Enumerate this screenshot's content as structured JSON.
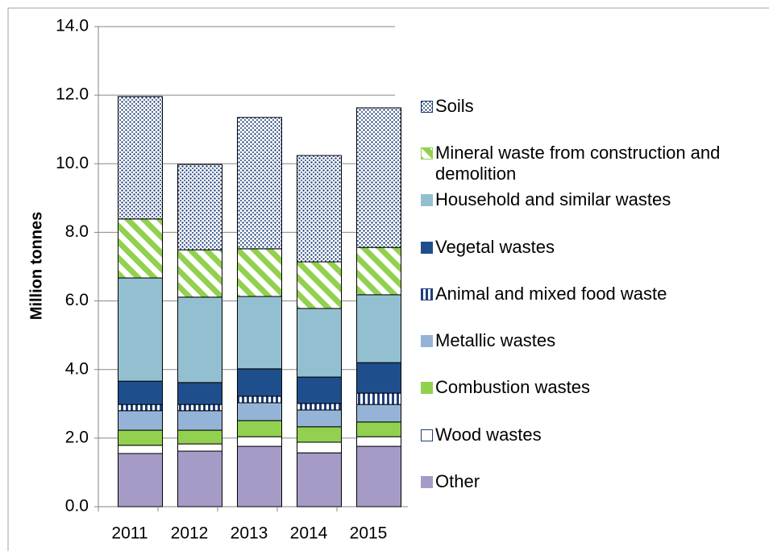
{
  "chart_data": {
    "type": "stacked_bar",
    "y_label": "Million tonnes",
    "categories": [
      "2011",
      "2012",
      "2013",
      "2014",
      "2015"
    ],
    "series": [
      {
        "name": "Other",
        "color": "#a69bc6",
        "values": [
          1.55,
          1.62,
          1.76,
          1.57,
          1.76
        ]
      },
      {
        "name": "Wood wastes",
        "color": "#ffffff",
        "values": [
          0.24,
          0.21,
          0.28,
          0.31,
          0.28
        ]
      },
      {
        "name": "Combustion wastes",
        "color": "#92d050",
        "values": [
          0.44,
          0.4,
          0.47,
          0.45,
          0.43
        ]
      },
      {
        "name": "Metallic wastes",
        "color": "#95b3d7",
        "values": [
          0.57,
          0.57,
          0.52,
          0.49,
          0.51
        ]
      },
      {
        "name": "Animal and mixed food waste",
        "color": "#1f3f7a",
        "pattern": "vertical",
        "values": [
          0.18,
          0.18,
          0.19,
          0.19,
          0.33
        ]
      },
      {
        "name": "Vegetal wastes",
        "color": "#1f4e8c",
        "values": [
          0.68,
          0.64,
          0.8,
          0.77,
          0.89
        ]
      },
      {
        "name": "Household and similar wastes",
        "color": "#93c0d0",
        "values": [
          3.01,
          2.49,
          2.11,
          2.0,
          1.98
        ]
      },
      {
        "name": "Mineral waste from construction and demolition",
        "color": "#92d050",
        "pattern": "diagonal",
        "values": [
          1.72,
          1.38,
          1.39,
          1.36,
          1.38
        ]
      },
      {
        "name": "Soils",
        "color": "#1f3f7a",
        "pattern": "dots",
        "values": [
          3.57,
          2.49,
          3.83,
          3.1,
          4.07
        ]
      }
    ],
    "ylim": [
      0,
      14
    ],
    "yticks": [
      {
        "value": 0,
        "label": "0.0"
      },
      {
        "value": 2,
        "label": "2.0"
      },
      {
        "value": 4,
        "label": "4.0"
      },
      {
        "value": 6,
        "label": "6.0"
      },
      {
        "value": 8,
        "label": "8.0"
      },
      {
        "value": 10,
        "label": "10.0"
      },
      {
        "value": 12,
        "label": "12.0"
      },
      {
        "value": 14,
        "label": "14.0"
      }
    ],
    "grid": true,
    "legend": "right"
  }
}
